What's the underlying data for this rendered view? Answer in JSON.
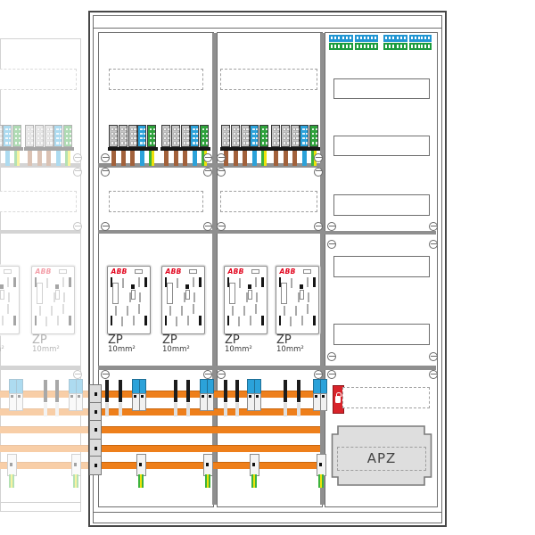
{
  "cabinet": {
    "meter_brand": "ABB",
    "meter_field_label": "ZP",
    "meter_wire_spec": "10mm²",
    "apz_field_label": "APZ",
    "meter_count": 4,
    "colors": {
      "busbar_orange": "#EE7F1B",
      "neutral_blue": "#2BA2DA",
      "pe_green": "#2FA23C",
      "wire_brown": "#A2613B",
      "wire_yellow": "#EFE20A",
      "wire_green": "#3DB33C",
      "device_red": "#D8232A",
      "brand_red": "#E2001A",
      "frame_gray": "#6E6E6E",
      "apz_field_fill": "#DEDEDE"
    }
  }
}
